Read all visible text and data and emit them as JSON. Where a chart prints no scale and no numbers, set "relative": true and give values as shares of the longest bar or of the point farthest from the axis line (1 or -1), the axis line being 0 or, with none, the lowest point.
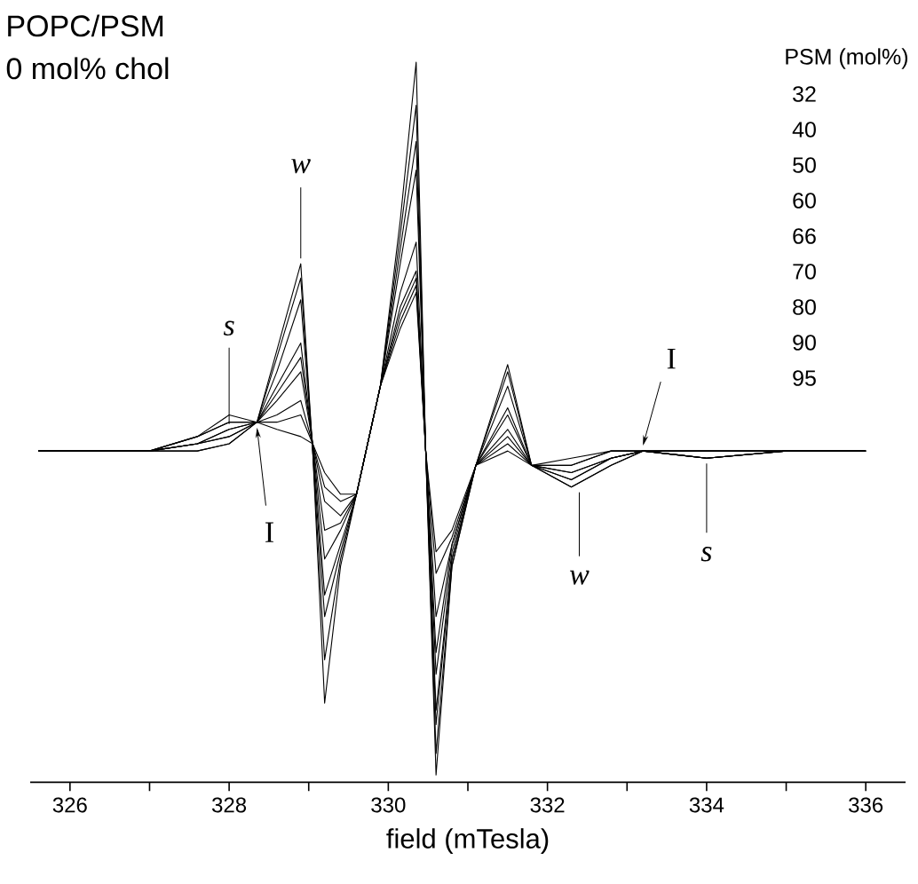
{
  "chart_data": {
    "type": "line",
    "title": "POPC/PSM",
    "subtitle": "0 mol% chol",
    "xlabel": "field (mTesla)",
    "relative": true,
    "xlim": [
      325.5,
      336.5
    ],
    "xticks": [
      326,
      {
        "value": 327,
        "label": null
      },
      328,
      {
        "value": 329,
        "label": null
      },
      330,
      {
        "value": 331,
        "label": null
      },
      332,
      {
        "value": 333,
        "label": null
      },
      334,
      {
        "value": 335,
        "label": null
      },
      336
    ],
    "x": [
      325.6,
      327.0,
      327.6,
      328.0,
      328.35,
      328.6,
      328.9,
      329.05,
      329.2,
      329.4,
      329.6,
      329.9,
      330.15,
      330.35,
      330.47,
      330.6,
      330.8,
      331.1,
      331.5,
      331.8,
      332.3,
      332.8,
      333.2,
      334.0,
      335.0,
      336.0
    ],
    "series": [
      {
        "color": "#000000",
        "values": [
          0.46,
          0.46,
          0.46,
          0.47,
          0.5,
          0.6,
          0.72,
          0.46,
          0.11,
          0.3,
          0.4,
          0.55,
          0.78,
          1.0,
          0.46,
          0.01,
          0.3,
          0.44,
          0.58,
          0.44,
          0.41,
          0.44,
          0.46,
          0.46,
          0.46,
          0.46
        ]
      },
      {
        "color": "#000000",
        "values": [
          0.46,
          0.46,
          0.46,
          0.47,
          0.5,
          0.59,
          0.7,
          0.46,
          0.17,
          0.31,
          0.4,
          0.55,
          0.76,
          0.94,
          0.46,
          0.04,
          0.3,
          0.44,
          0.57,
          0.44,
          0.41,
          0.44,
          0.46,
          0.46,
          0.46,
          0.46
        ]
      },
      {
        "color": "#000000",
        "values": [
          0.46,
          0.46,
          0.47,
          0.48,
          0.5,
          0.57,
          0.67,
          0.46,
          0.23,
          0.32,
          0.4,
          0.55,
          0.74,
          0.89,
          0.46,
          0.08,
          0.31,
          0.44,
          0.55,
          0.44,
          0.42,
          0.45,
          0.46,
          0.46,
          0.46,
          0.46
        ]
      },
      {
        "color": "#000000",
        "values": [
          0.46,
          0.46,
          0.47,
          0.48,
          0.5,
          0.55,
          0.61,
          0.47,
          0.26,
          0.33,
          0.4,
          0.55,
          0.72,
          0.85,
          0.46,
          0.1,
          0.31,
          0.44,
          0.52,
          0.44,
          0.42,
          0.45,
          0.46,
          0.46,
          0.46,
          0.46
        ]
      },
      {
        "color": "#000000",
        "values": [
          0.46,
          0.46,
          0.47,
          0.49,
          0.5,
          0.54,
          0.59,
          0.47,
          0.31,
          0.35,
          0.4,
          0.55,
          0.68,
          0.75,
          0.46,
          0.15,
          0.32,
          0.44,
          0.51,
          0.44,
          0.43,
          0.45,
          0.46,
          0.45,
          0.46,
          0.46
        ]
      },
      {
        "color": "#000000",
        "values": [
          0.46,
          0.46,
          0.47,
          0.49,
          0.5,
          0.53,
          0.57,
          0.47,
          0.35,
          0.36,
          0.4,
          0.55,
          0.66,
          0.71,
          0.46,
          0.18,
          0.33,
          0.44,
          0.49,
          0.44,
          0.43,
          0.45,
          0.46,
          0.45,
          0.46,
          0.46
        ]
      },
      {
        "color": "#000000",
        "values": [
          0.46,
          0.46,
          0.48,
          0.5,
          0.5,
          0.51,
          0.53,
          0.47,
          0.39,
          0.37,
          0.4,
          0.55,
          0.65,
          0.7,
          0.46,
          0.23,
          0.33,
          0.44,
          0.48,
          0.44,
          0.44,
          0.46,
          0.46,
          0.45,
          0.46,
          0.46
        ]
      },
      {
        "color": "#000000",
        "values": [
          0.46,
          0.46,
          0.48,
          0.5,
          0.5,
          0.5,
          0.51,
          0.47,
          0.41,
          0.39,
          0.4,
          0.55,
          0.64,
          0.69,
          0.46,
          0.29,
          0.34,
          0.44,
          0.47,
          0.44,
          0.44,
          0.46,
          0.46,
          0.45,
          0.46,
          0.46
        ]
      },
      {
        "color": "#000000",
        "values": [
          0.46,
          0.46,
          0.48,
          0.51,
          0.5,
          0.49,
          0.48,
          0.47,
          0.43,
          0.4,
          0.4,
          0.55,
          0.63,
          0.68,
          0.46,
          0.32,
          0.35,
          0.44,
          0.46,
          0.44,
          0.45,
          0.46,
          0.46,
          0.45,
          0.46,
          0.46
        ]
      }
    ],
    "annotations": [
      {
        "text": "w",
        "x": 328.9,
        "y": 0.72
      },
      {
        "text": "s",
        "x": 328.0,
        "y": 0.49
      },
      {
        "text": "I",
        "x": 328.35,
        "y": 0.5
      },
      {
        "text": "I",
        "x": 333.2,
        "y": 0.46
      },
      {
        "text": "w",
        "x": 332.4,
        "y": 0.41
      },
      {
        "text": "s",
        "x": 334.0,
        "y": 0.45
      },
      "PSM (mol%)",
      "32",
      "40",
      "50",
      "60",
      "66",
      "70",
      "80",
      "90",
      "95"
    ]
  }
}
